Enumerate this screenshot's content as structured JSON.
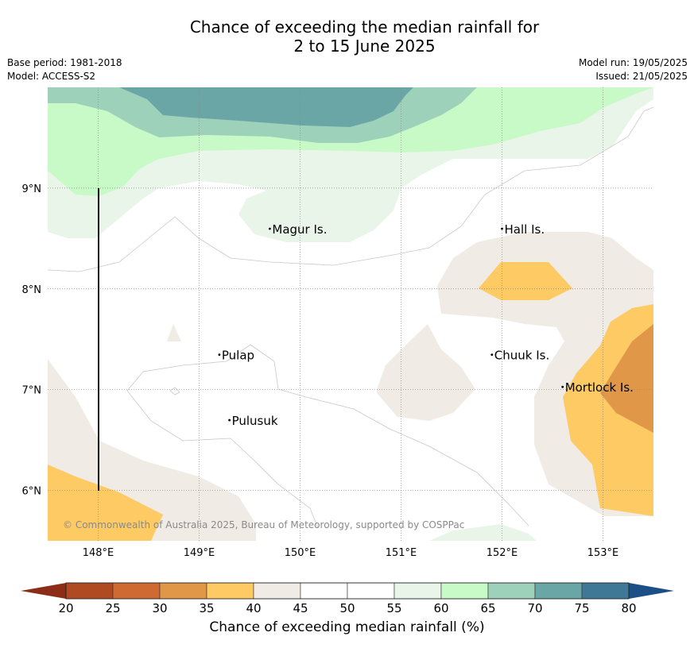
{
  "title_line1": "Chance of exceeding the median rainfall for",
  "title_line2": "2 to 15 June 2025",
  "base_period": "Base period: 1981-2018",
  "model": "Model: ACCESS-S2",
  "model_run": "Model run: 19/05/2025",
  "issued": "Issued: 21/05/2025",
  "copyright": "© Commonwealth of Australia 2025, Bureau of Meteorology, supported by COSPPac",
  "map": {
    "lon_range": [
      147.5,
      153.5
    ],
    "lat_range": [
      5.5,
      10.0
    ],
    "lon_ticks": [
      {
        "value": 148,
        "label": "148°E"
      },
      {
        "value": 149,
        "label": "149°E"
      },
      {
        "value": 150,
        "label": "150°E"
      },
      {
        "value": 151,
        "label": "151°E"
      },
      {
        "value": 152,
        "label": "152°E"
      },
      {
        "value": 153,
        "label": "153°E"
      }
    ],
    "lat_ticks": [
      {
        "value": 9,
        "label": "9°N"
      },
      {
        "value": 8,
        "label": "8°N"
      },
      {
        "value": 7,
        "label": "7°N"
      },
      {
        "value": 6,
        "label": "6°N"
      }
    ],
    "grid": true,
    "islands": [
      {
        "name": "Magur Is.",
        "lon": 149.7,
        "lat": 8.55
      },
      {
        "name": "Hall Is.",
        "lon": 152.0,
        "lat": 8.55
      },
      {
        "name": "Pulap",
        "lon": 149.2,
        "lat": 7.3
      },
      {
        "name": "Chuuk Is.",
        "lon": 151.9,
        "lat": 7.3
      },
      {
        "name": "Mortlock Is.",
        "lon": 152.6,
        "lat": 6.98
      },
      {
        "name": "Pulusuk",
        "lon": 149.3,
        "lat": 6.65
      }
    ]
  },
  "colorbar": {
    "label": "Chance of exceeding median rainfall (%)",
    "ticks": [
      "20",
      "25",
      "30",
      "35",
      "40",
      "45",
      "50",
      "55",
      "60",
      "65",
      "70",
      "75",
      "80"
    ],
    "under_color": "#8c2d19",
    "over_color": "#1d4f87",
    "colors": [
      "#b04a23",
      "#cf6a32",
      "#e09848",
      "#fdca64",
      "#f0ebe4",
      "#ffffff",
      "#ffffff",
      "#eaf5ea",
      "#c8fac8",
      "#9ed1ba",
      "#6aa6a6",
      "#3f7797"
    ]
  }
}
